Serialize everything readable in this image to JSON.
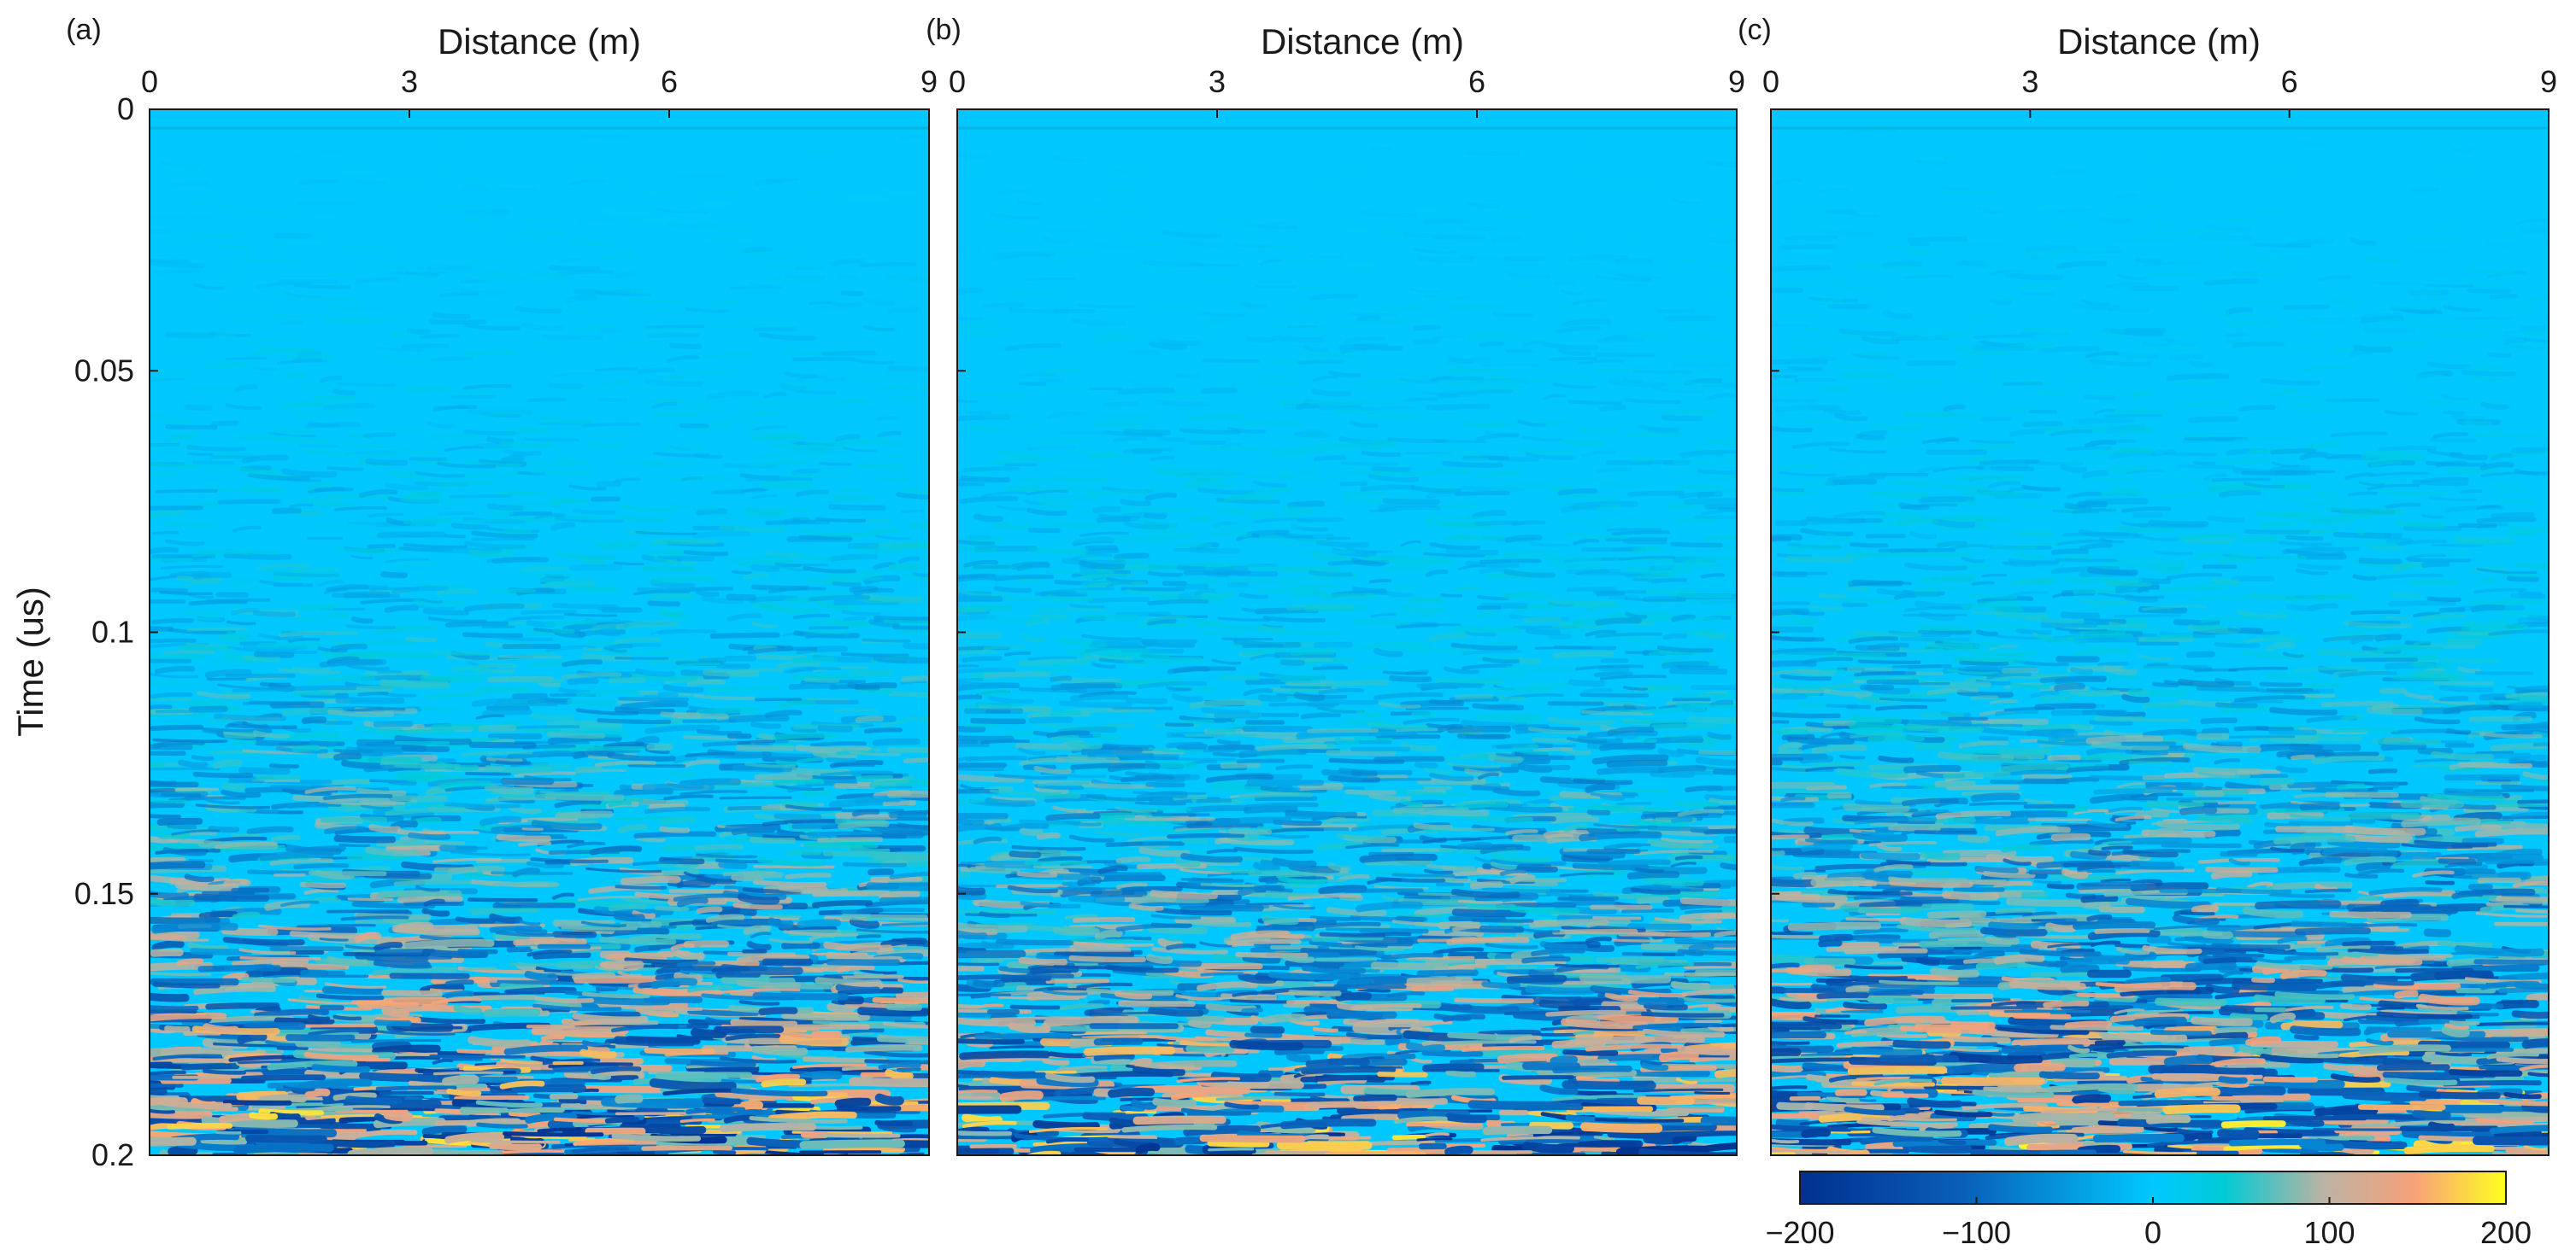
{
  "figure": {
    "y_axis_label": "Time (us)",
    "colormap": [
      "#00308f",
      "#0a5fb8",
      "#00c8ff",
      "#00cbd6",
      "#b9b3a3",
      "#f7a17a",
      "#ffff1e"
    ]
  },
  "colorbar": {
    "range": [
      -200,
      200
    ],
    "ticks": [
      "-200",
      "-100",
      "0",
      "100",
      "200"
    ]
  },
  "chart_data": [
    {
      "type": "heatmap",
      "panel_label": "(a)",
      "xlabel": "Distance (m)",
      "ylabel": "Time (us)",
      "xlim": [
        0,
        9
      ],
      "ylim": [
        0,
        0.2
      ],
      "y_inverted": true,
      "x_ticks": [
        "0",
        "3",
        "6",
        "9"
      ],
      "y_ticks": [
        "0",
        "0.05",
        "0.1",
        "0.15",
        "0.2"
      ],
      "value_range": [
        -200,
        200
      ],
      "approx_amplitude_profile": [
        {
          "time": 0.0,
          "max_abs_amplitude": 10
        },
        {
          "time": 0.05,
          "max_abs_amplitude": 30
        },
        {
          "time": 0.1,
          "max_abs_amplitude": 60
        },
        {
          "time": 0.15,
          "max_abs_amplitude": 120
        },
        {
          "time": 0.2,
          "max_abs_amplitude": 200
        }
      ]
    },
    {
      "type": "heatmap",
      "panel_label": "(b)",
      "xlabel": "Distance (m)",
      "ylabel": "",
      "xlim": [
        0,
        9
      ],
      "ylim": [
        0,
        0.2
      ],
      "y_inverted": true,
      "x_ticks": [
        "0",
        "3",
        "6",
        "9"
      ],
      "y_ticks": [],
      "value_range": [
        -200,
        200
      ],
      "approx_amplitude_profile": [
        {
          "time": 0.0,
          "max_abs_amplitude": 10
        },
        {
          "time": 0.05,
          "max_abs_amplitude": 25
        },
        {
          "time": 0.1,
          "max_abs_amplitude": 55
        },
        {
          "time": 0.15,
          "max_abs_amplitude": 110
        },
        {
          "time": 0.2,
          "max_abs_amplitude": 200
        }
      ]
    },
    {
      "type": "heatmap",
      "panel_label": "(c)",
      "xlabel": "Distance (m)",
      "ylabel": "",
      "xlim": [
        0,
        9
      ],
      "ylim": [
        0,
        0.2
      ],
      "y_inverted": true,
      "x_ticks": [
        "0",
        "3",
        "6",
        "9"
      ],
      "y_ticks": [],
      "value_range": [
        -200,
        200
      ],
      "approx_amplitude_profile": [
        {
          "time": 0.0,
          "max_abs_amplitude": 10
        },
        {
          "time": 0.05,
          "max_abs_amplitude": 30
        },
        {
          "time": 0.1,
          "max_abs_amplitude": 60
        },
        {
          "time": 0.15,
          "max_abs_amplitude": 130
        },
        {
          "time": 0.2,
          "max_abs_amplitude": 200
        }
      ]
    }
  ]
}
